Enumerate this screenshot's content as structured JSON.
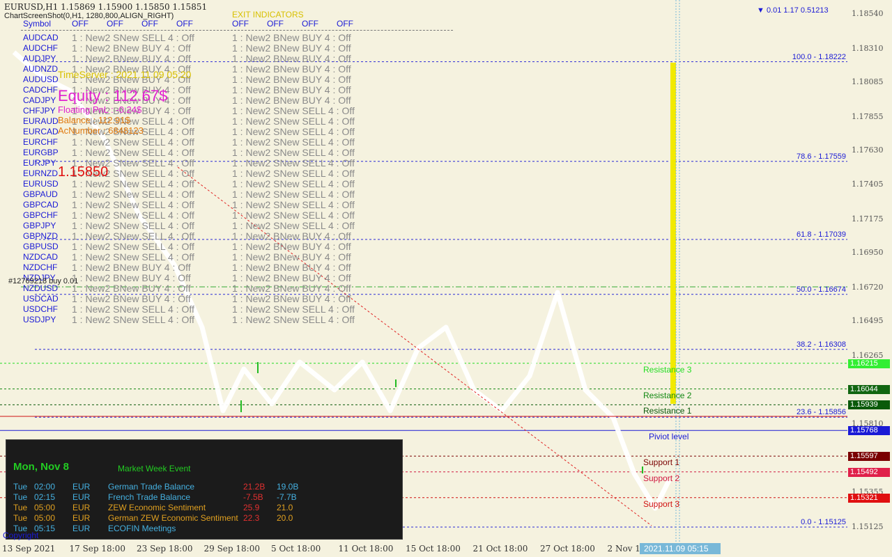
{
  "window": {
    "title": "EURUSD,H1  1.15869 1.15900 1.15850 1.15851",
    "screenshot_label": "ChartScreenShot(0,H1, 1280,800,ALIGN_RIGHT)"
  },
  "indicator_headers": {
    "symbol": "Symbol",
    "entry_status": [
      "OFF",
      "OFF",
      "OFF",
      "OFF"
    ],
    "exit_title": "EXIT INDICATORS",
    "exit_status": [
      "OFF",
      "OFF",
      "OFF",
      "OFF"
    ]
  },
  "symbol_rows": [
    {
      "symbol": "AUDCAD",
      "entry": "1 : New2 SNew SELL 4 : Off",
      "exit": "1 : New2 BNew BUY 4 : Off"
    },
    {
      "symbol": "AUDCHF",
      "entry": "1 : New2 BNew BUY 4 : Off",
      "exit": "1 : New2 BNew BUY 4 : Off"
    },
    {
      "symbol": "AUDJPY",
      "entry": "1 : New2 BNew BUY 4 : Off",
      "exit": "1 : New2 BNew BUY 4 : Off"
    },
    {
      "symbol": "AUDNZD",
      "entry": "1 : New2 BNew BUY 4 : Off",
      "exit": "1 : New2 BNew BUY 4 : Off"
    },
    {
      "symbol": "AUDUSD",
      "entry": "1 : New2 BNew BUY 4 : Off",
      "exit": "1 : New2 BNew BUY 4 : Off"
    },
    {
      "symbol": "CADCHF",
      "entry": "1 : New2 BNew BUY 4 : Off",
      "exit": "1 : New2 BNew BUY 4 : Off"
    },
    {
      "symbol": "CADJPY",
      "entry": "1 : New2 BNew BUY 4 : Off",
      "exit": "1 : New2 BNew BUY 4 : Off"
    },
    {
      "symbol": "CHFJPY",
      "entry": "1 : New2 BNew BUY 4 : Off",
      "exit": "1 : New2 SNew SELL 4 : Off"
    },
    {
      "symbol": "EURAUD",
      "entry": "1 : New2 SNew SELL 4 : Off",
      "exit": "1 : New2 SNew SELL 4 : Off"
    },
    {
      "symbol": "EURCAD",
      "entry": "1 : New2 SNew SELL 4 : Off",
      "exit": "1 : New2 SNew SELL 4 : Off"
    },
    {
      "symbol": "EURCHF",
      "entry": "1 : New2 SNew SELL 4 : Off",
      "exit": "1 : New2 SNew SELL 4 : Off"
    },
    {
      "symbol": "EURGBP",
      "entry": "1 : New2 SNew SELL 4 : Off",
      "exit": "1 : New2 SNew SELL 4 : Off"
    },
    {
      "symbol": "EURJPY",
      "entry": "1 : New2 SNew SELL 4 : Off",
      "exit": "1 : New2 SNew SELL 4 : Off"
    },
    {
      "symbol": "EURNZD",
      "entry": "1 : New2 SNew SELL 4 : Off",
      "exit": "1 : New2 SNew SELL 4 : Off"
    },
    {
      "symbol": "EURUSD",
      "entry": "1 : New2 SNew SELL 4 : Off",
      "exit": "1 : New2 SNew SELL 4 : Off"
    },
    {
      "symbol": "GBPAUD",
      "entry": "1 : New2 SNew SELL 4 : Off",
      "exit": "1 : New2 SNew SELL 4 : Off"
    },
    {
      "symbol": "GBPCAD",
      "entry": "1 : New2 SNew SELL 4 : Off",
      "exit": "1 : New2 SNew SELL 4 : Off"
    },
    {
      "symbol": "GBPCHF",
      "entry": "1 : New2 SNew SELL 4 : Off",
      "exit": "1 : New2 SNew SELL 4 : Off"
    },
    {
      "symbol": "GBPJPY",
      "entry": "1 : New2 SNew SELL 4 : Off",
      "exit": "1 : New2 SNew SELL 4 : Off"
    },
    {
      "symbol": "GBPNZD",
      "entry": "1 : New2 SNew SELL 4 : Off",
      "exit": "1 : New2 BNew BUY 4 : Off"
    },
    {
      "symbol": "GBPUSD",
      "entry": "1 : New2 SNew SELL 4 : Off",
      "exit": "1 : New2 BNew BUY 4 : Off"
    },
    {
      "symbol": "NZDCAD",
      "entry": "1 : New2 SNew SELL 4 : Off",
      "exit": "1 : New2 BNew BUY 4 : Off"
    },
    {
      "symbol": "NZDCHF",
      "entry": "1 : New2 BNew BUY 4 : Off",
      "exit": "1 : New2 BNew BUY 4 : Off"
    },
    {
      "symbol": "NZDJPY",
      "entry": "1 : New2 BNew BUY 4 : Off",
      "exit": "1 : New2 BNew BUY 4 : Off"
    },
    {
      "symbol": "NZDUSD",
      "entry": "1 : New2 BNew BUY 4 : Off",
      "exit": "1 : New2 BNew BUY 4 : Off"
    },
    {
      "symbol": "USDCAD",
      "entry": "1 : New2 BNew BUY 4 : Off",
      "exit": "1 : New2 BNew BUY 4 : Off"
    },
    {
      "symbol": "USDCHF",
      "entry": "1 : New2 SNew SELL 4 : Off",
      "exit": "1 : New2 SNew SELL 4 : Off"
    },
    {
      "symbol": "USDJPY",
      "entry": "1 : New2 SNew SELL 4 : Off",
      "exit": "1 : New2 SNew SELL 4 : Off"
    }
  ],
  "account": {
    "time_server": "TimeServer : 2021.11.09 05:20",
    "equity": "Equity : 112.67$",
    "floating_pnl": "Floating PnL : -0.24$",
    "balance": "Balance : 112.91$",
    "ac_number": "AcNumber : 6848123",
    "price": "1.15850"
  },
  "trade_label": "#12769218 buy 0.01",
  "top_right_label": "▼ 0.01 1.17 0.51213",
  "fib_levels": [
    {
      "label": "100.0 - 1.18222",
      "price": 1.18222
    },
    {
      "label": "78.6 - 1.17559",
      "price": 1.17559
    },
    {
      "label": "61.8 - 1.17039",
      "price": 1.17039
    },
    {
      "label": "50.0 - 1.16674",
      "price": 1.16674
    },
    {
      "label": "38.2 - 1.16308",
      "price": 1.16308
    },
    {
      "label": "23.6 - 1.15856",
      "price": 1.15856
    },
    {
      "label": "0.0 - 1.15125",
      "price": 1.15125
    }
  ],
  "price_axis": [
    "1.18540",
    "1.18310",
    "1.18085",
    "1.17855",
    "1.17630",
    "1.17405",
    "1.17175",
    "1.16950",
    "1.16720",
    "1.16495",
    "1.16265",
    "1.16040",
    "1.15810",
    "1.15585",
    "1.15355",
    "1.15125"
  ],
  "pivot_levels": [
    {
      "name": "Resistance 3",
      "price": "1.16215",
      "color": "#22dd22",
      "tag_bg": "#33ee33"
    },
    {
      "name": "Resistance 2",
      "price": "1.16044",
      "color": "#118811",
      "tag_bg": "#116611"
    },
    {
      "name": "Resistance 1",
      "price": "1.15939",
      "color": "#0a5a0a",
      "tag_bg": "#0a5a0a"
    },
    {
      "name": "Piviot level",
      "price": "1.15768",
      "color": "#1a1ad6",
      "tag_bg": "#1a1ad6"
    },
    {
      "name": "Support 1",
      "price": "1.15597",
      "color": "#7a0000",
      "tag_bg": "#7a0000"
    },
    {
      "name": "Support 2",
      "price": "1.15492",
      "color": "#d01840",
      "tag_bg": "#e0204a"
    },
    {
      "name": "Support 3",
      "price": "1.15321",
      "color": "#d01010",
      "tag_bg": "#e01010"
    }
  ],
  "time_axis": [
    "13 Sep 2021",
    "17 Sep 18:00",
    "23 Sep 18:00",
    "29 Sep 18:00",
    "5 Oct 18:00",
    "11 Oct 18:00",
    "15 Oct 18:00",
    "21 Oct 18:00",
    "27 Oct 18:00",
    "2 Nov 18:00"
  ],
  "cursor_time": "2021.11.09 05:15",
  "news": {
    "date": "Mon, Nov 8",
    "subtitle": "Market Week Event",
    "rows": [
      {
        "day": "Tue",
        "time": "02:00",
        "ccy": "EUR",
        "event": "German Trade Balance",
        "actual": "21.2B",
        "forecast": "19.0B",
        "color": "#45b0e0"
      },
      {
        "day": "Tue",
        "time": "02:15",
        "ccy": "EUR",
        "event": "French Trade Balance",
        "actual": "-7.5B",
        "forecast": "-7.7B",
        "color": "#45b0e0"
      },
      {
        "day": "Tue",
        "time": "05:00",
        "ccy": "EUR",
        "event": "ZEW Economic Sentiment",
        "actual": "25.9",
        "forecast": "21.0",
        "color": "#e0a020"
      },
      {
        "day": "Tue",
        "time": "05:00",
        "ccy": "EUR",
        "event": "German ZEW Economic Sentiment",
        "actual": "22.3",
        "forecast": "20.0",
        "color": "#e0a020"
      },
      {
        "day": "Tue",
        "time": "05:15",
        "ccy": "EUR",
        "event": "ECOFIN Meetings",
        "actual": "",
        "forecast": "",
        "color": "#45b0e0"
      }
    ]
  },
  "copyright": "Copyright"
}
